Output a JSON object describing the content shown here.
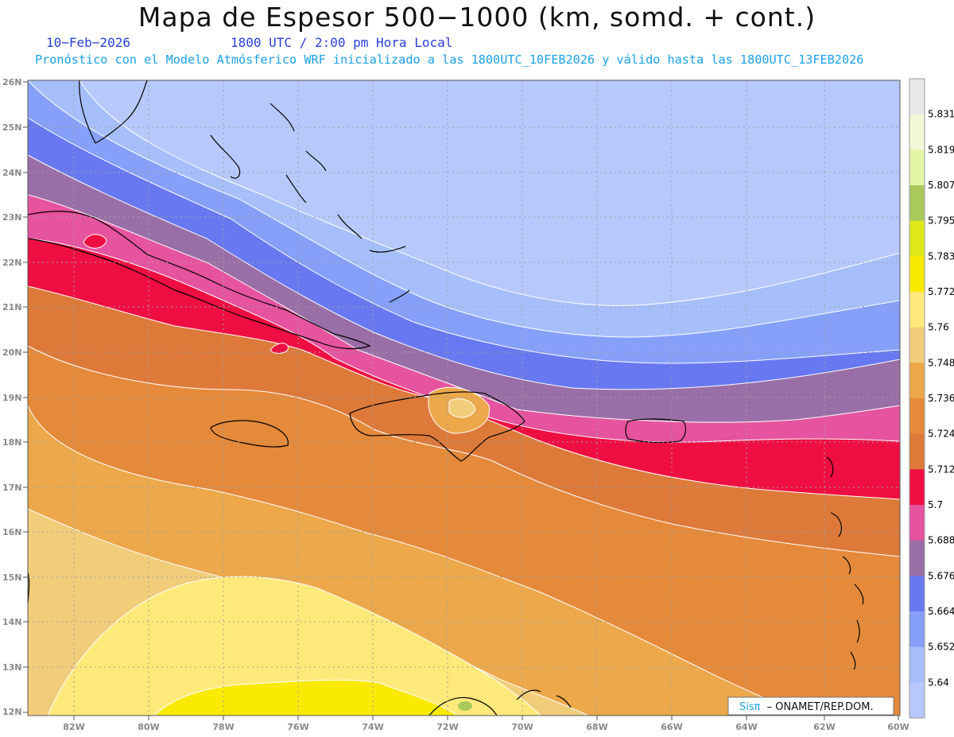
{
  "header": {
    "title": "Mapa de Espesor 500−1000 (km, somd. + cont.)",
    "date": "10−Feb−2026",
    "time": "1800 UTC / 2:00 pm Hora Local",
    "subtitle": "Pronóstico con el Modelo Atmósferico WRF inicializado a las 1800UTC_10FEB2026 y válido hasta las  1800UTC_13FEB2026"
  },
  "map": {
    "lat_labels": [
      "26N",
      "25N",
      "24N",
      "23N",
      "22N",
      "21N",
      "20N",
      "19N",
      "18N",
      "17N",
      "16N",
      "15N",
      "14N",
      "13N",
      "12N"
    ],
    "lon_labels": [
      "82W",
      "80W",
      "78W",
      "76W",
      "74W",
      "72W",
      "70W",
      "68W",
      "66W",
      "64W",
      "62W",
      "60W"
    ]
  },
  "colorbar": {
    "levels": [
      "5.831",
      "5.819",
      "5.807",
      "5.795",
      "5.783",
      "5.772",
      "5.76",
      "5.748",
      "5.736",
      "5.724",
      "5.712",
      "5.7",
      "5.688",
      "5.676",
      "5.664",
      "5.652",
      "5.64"
    ],
    "colors": [
      "#e9e9e9",
      "#f2f7d6",
      "#e4f4a6",
      "#a9c95d",
      "#dfe91a",
      "#f9ea00",
      "#ffe97a",
      "#f1cd7a",
      "#eca84a",
      "#e58a3a",
      "#dd7a3a",
      "#ef0e42",
      "#e6539f",
      "#9a6fa7",
      "#6878f0",
      "#86a0fa",
      "#a6bffc",
      "#b7c8fd"
    ]
  },
  "credit": {
    "sis": "Sisπ",
    "rest": "– ONAMET/REP.DOM."
  }
}
